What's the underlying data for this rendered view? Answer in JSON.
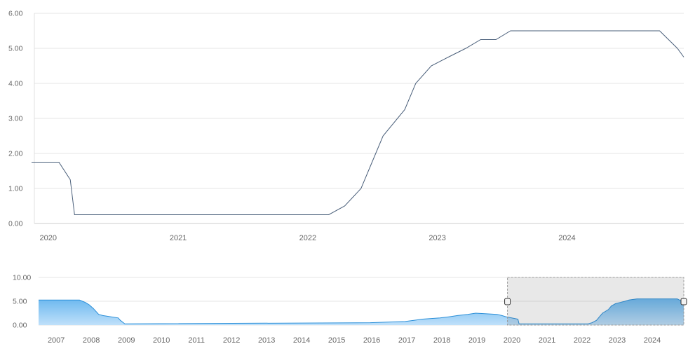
{
  "chart_data": [
    {
      "type": "line",
      "role": "main",
      "x_ticks": [
        "2020",
        "2021",
        "2022",
        "2023",
        "2024"
      ],
      "y_ticks": [
        "0.00",
        "1.00",
        "2.00",
        "3.00",
        "4.00",
        "5.00",
        "6.00"
      ],
      "ylim": [
        0,
        6
      ],
      "xlim": [
        "2019-11-15",
        "2024-11-25"
      ],
      "grid": true,
      "line_color": "#4a5f7a",
      "series": [
        {
          "values": [
            [
              "2019-11-15",
              1.75
            ],
            [
              "2020-01-01",
              1.75
            ],
            [
              "2020-01-31",
              1.75
            ],
            [
              "2020-03-03",
              1.25
            ],
            [
              "2020-03-15",
              0.25
            ],
            [
              "2022-03-01",
              0.25
            ],
            [
              "2022-04-15",
              0.5
            ],
            [
              "2022-05-31",
              1.0
            ],
            [
              "2022-07-01",
              1.75
            ],
            [
              "2022-08-01",
              2.5
            ],
            [
              "2022-10-01",
              3.25
            ],
            [
              "2022-11-01",
              4.0
            ],
            [
              "2022-12-15",
              4.5
            ],
            [
              "2023-02-01",
              4.75
            ],
            [
              "2023-03-22",
              5.0
            ],
            [
              "2023-05-03",
              5.25
            ],
            [
              "2023-06-15",
              5.25
            ],
            [
              "2023-07-26",
              5.5
            ],
            [
              "2024-09-18",
              5.5
            ],
            [
              "2024-11-07",
              5.0
            ],
            [
              "2024-11-25",
              4.75
            ]
          ]
        }
      ]
    },
    {
      "type": "area",
      "role": "navigator",
      "x_ticks": [
        "2007",
        "2008",
        "2009",
        "2010",
        "2011",
        "2012",
        "2013",
        "2014",
        "2015",
        "2016",
        "2017",
        "2018",
        "2019",
        "2020",
        "2021",
        "2022",
        "2023",
        "2024"
      ],
      "y_ticks": [
        "0.00",
        "5.00",
        "10.00"
      ],
      "ylim": [
        0,
        10
      ],
      "xlim": [
        "2006-07-01",
        "2024-11-25"
      ],
      "selected_range": [
        "2019-11-15",
        "2024-11-25"
      ],
      "grid": true,
      "line_color": "#2b8fd8",
      "fill_color": "#bfe0fa",
      "series": [
        {
          "values": [
            [
              "2006-07-01",
              5.25
            ],
            [
              "2007-09-01",
              5.25
            ],
            [
              "2007-10-31",
              4.75
            ],
            [
              "2007-12-11",
              4.25
            ],
            [
              "2008-01-22",
              3.5
            ],
            [
              "2008-03-18",
              2.25
            ],
            [
              "2008-04-30",
              2.0
            ],
            [
              "2008-10-08",
              1.5
            ],
            [
              "2008-10-29",
              1.0
            ],
            [
              "2008-12-16",
              0.25
            ],
            [
              "2015-12-16",
              0.5
            ],
            [
              "2016-12-14",
              0.75
            ],
            [
              "2017-03-15",
              1.0
            ],
            [
              "2017-06-14",
              1.25
            ],
            [
              "2017-12-13",
              1.5
            ],
            [
              "2018-03-21",
              1.75
            ],
            [
              "2018-06-13",
              2.0
            ],
            [
              "2018-09-26",
              2.25
            ],
            [
              "2018-12-19",
              2.5
            ],
            [
              "2019-07-31",
              2.25
            ],
            [
              "2019-09-18",
              2.0
            ],
            [
              "2019-10-30",
              1.75
            ],
            [
              "2020-03-03",
              1.25
            ],
            [
              "2020-03-15",
              0.25
            ],
            [
              "2022-03-01",
              0.25
            ],
            [
              "2022-04-15",
              0.5
            ],
            [
              "2022-05-31",
              1.0
            ],
            [
              "2022-07-01",
              1.75
            ],
            [
              "2022-08-01",
              2.5
            ],
            [
              "2022-10-01",
              3.25
            ],
            [
              "2022-11-01",
              4.0
            ],
            [
              "2022-12-15",
              4.5
            ],
            [
              "2023-02-01",
              4.75
            ],
            [
              "2023-03-22",
              5.0
            ],
            [
              "2023-05-03",
              5.25
            ],
            [
              "2023-07-26",
              5.5
            ],
            [
              "2024-09-18",
              5.5
            ],
            [
              "2024-11-07",
              5.0
            ],
            [
              "2024-11-25",
              4.75
            ]
          ]
        }
      ]
    }
  ]
}
